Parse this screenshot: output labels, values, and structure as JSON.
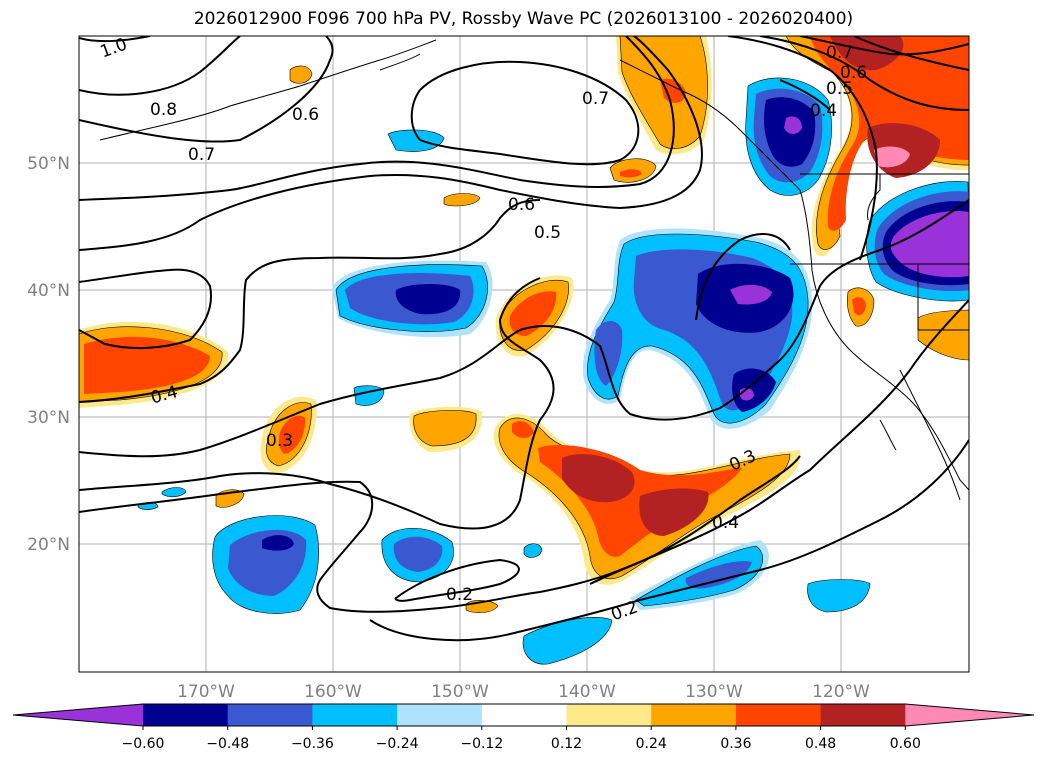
{
  "title": "2026012900 F096 700 hPa PV, Rossby Wave PC (2026013100 - 2026020400)",
  "lat_labels": [
    "50°N",
    "40°N",
    "30°N",
    "20°N"
  ],
  "lon_labels": [
    "170°W",
    "160°W",
    "150°W",
    "140°W",
    "130°W",
    "120°W"
  ],
  "contour_labels": [
    "1.0",
    "0.8",
    "0.7",
    "0.6",
    "0.7",
    "0.6",
    "0.5",
    "0.7",
    "0.6",
    "0.5",
    "0.4",
    "0.4",
    "0.3",
    "0.3",
    "0.4",
    "0.2",
    "0.2"
  ],
  "colorbar": {
    "tick_labels": [
      "−0.60",
      "−0.48",
      "−0.36",
      "−0.24",
      "−0.12",
      "0.12",
      "0.24",
      "0.36",
      "0.48",
      "0.60"
    ],
    "colors": [
      "#9933d9",
      "#000090",
      "#3a58cf",
      "#00bfff",
      "#aee3fb",
      "#ffffff",
      "#fde98a",
      "#ffa500",
      "#ff4500",
      "#b22222",
      "#ff88b4"
    ]
  }
}
